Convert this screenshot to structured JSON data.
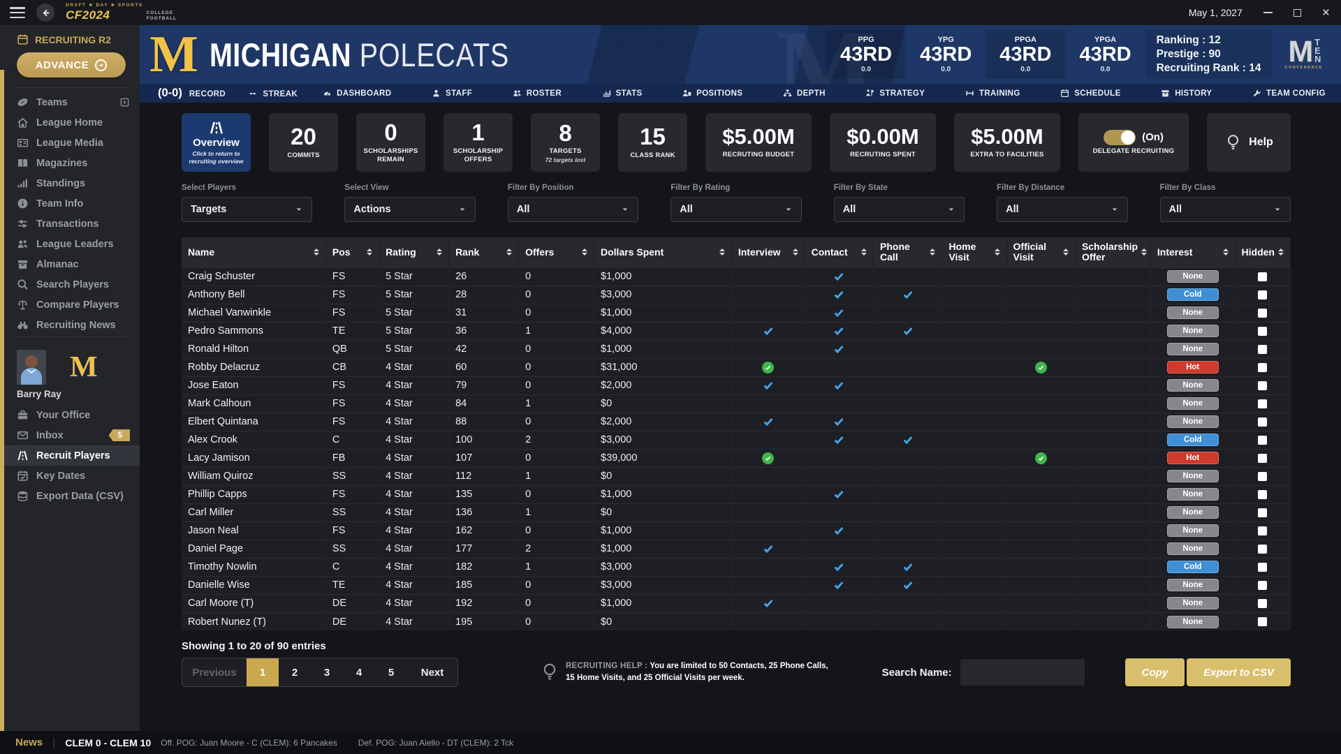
{
  "topbar": {
    "logo": {
      "top": "DRAFT ★ DAY ★ SPORTS",
      "main": "CF2024",
      "stack1": "COLLEGE",
      "stack2": "FOOTBALL"
    },
    "date": "May 1, 2027"
  },
  "sidebar": {
    "phase_label": "RECRUITING R2",
    "advance_label": "ADVANCE",
    "items": [
      {
        "label": "Teams",
        "icon": "football-icon",
        "trailing_icon": "popout-icon"
      },
      {
        "label": "League Home",
        "icon": "home-icon"
      },
      {
        "label": "League Media",
        "icon": "media-icon"
      },
      {
        "label": "Magazines",
        "icon": "book-icon"
      },
      {
        "label": "Standings",
        "icon": "bar-chart-icon"
      },
      {
        "label": "Team Info",
        "icon": "info-icon"
      },
      {
        "label": "Transactions",
        "icon": "transfer-icon"
      },
      {
        "label": "League Leaders",
        "icon": "people-icon"
      },
      {
        "label": "Almanac",
        "icon": "archive-icon"
      },
      {
        "label": "Search Players",
        "icon": "search-icon"
      },
      {
        "label": "Compare Players",
        "icon": "scales-icon"
      },
      {
        "label": "Recruiting News",
        "icon": "binoculars-icon"
      }
    ],
    "user": {
      "name": "Barry Ray",
      "team_monogram": "M"
    },
    "tools": [
      {
        "label": "Your Office",
        "icon": "briefcase-icon"
      },
      {
        "label": "Inbox",
        "icon": "envelope-icon",
        "badge": "5"
      },
      {
        "label": "Recruit Players",
        "icon": "road-icon",
        "active": true
      },
      {
        "label": "Key Dates",
        "icon": "calendar-check-icon"
      },
      {
        "label": "Export Data (CSV)",
        "icon": "database-icon"
      }
    ]
  },
  "banner": {
    "monogram": "M",
    "name_primary": "MICHIGAN",
    "name_secondary": "POLECATS",
    "record_value": "(0-0)",
    "record_label": "RECORD",
    "streak_value": "--",
    "streak_label": "STREAK",
    "rank_stats": [
      {
        "label": "PPG",
        "rank": "43RD",
        "value": "0.0"
      },
      {
        "label": "YPG",
        "rank": "43RD",
        "value": "0.0"
      },
      {
        "label": "PPGA",
        "rank": "43RD",
        "value": "0.0"
      },
      {
        "label": "YPGA",
        "rank": "43RD",
        "value": "0.0"
      }
    ],
    "meta": [
      "Ranking : 12",
      "Prestige : 90",
      "Recruiting Rank : 14"
    ],
    "conference": {
      "m": "M",
      "ten": "TEN",
      "sub": "CONFERENCE"
    },
    "tabs": [
      {
        "label": "DASHBOARD",
        "icon": "dashboard-icon"
      },
      {
        "label": "STAFF",
        "icon": "person-icon"
      },
      {
        "label": "ROSTER",
        "icon": "people-icon"
      },
      {
        "label": "STATS",
        "icon": "chart-icon"
      },
      {
        "label": "POSITIONS",
        "icon": "positions-icon"
      },
      {
        "label": "DEPTH",
        "icon": "tree-icon"
      },
      {
        "label": "STRATEGY",
        "icon": "strategy-icon"
      },
      {
        "label": "TRAINING",
        "icon": "dumbbell-icon"
      },
      {
        "label": "SCHEDULE",
        "icon": "calendar-icon"
      },
      {
        "label": "HISTORY",
        "icon": "archive-icon"
      },
      {
        "label": "TEAM CONFIG",
        "icon": "wrench-icon"
      }
    ]
  },
  "cards": {
    "overview": {
      "label": "Overview",
      "sub": "Click to return to recruiting overview",
      "icon": "road-icon"
    },
    "stats": [
      {
        "value": "20",
        "label": "COMMITS"
      },
      {
        "value": "0",
        "label": "SCHOLARSHIPS REMAIN"
      },
      {
        "value": "1",
        "label": "SCHOLARSHIP OFFERS"
      },
      {
        "value": "8",
        "label": "TARGETS",
        "sub": "72 targets lost"
      },
      {
        "value": "15",
        "label": "CLASS RANK"
      },
      {
        "value": "$5.00M",
        "label": "RECRUTING BUDGET",
        "wide": true
      },
      {
        "value": "$0.00M",
        "label": "RECRUTING SPENT",
        "wide": true
      },
      {
        "value": "$5.00M",
        "label": "EXTRA TO FACILITIES",
        "wide": true
      }
    ],
    "delegate": {
      "label": "DELEGATE RECRUITING",
      "state": "(On)"
    },
    "help": {
      "label": "Help",
      "icon": "lightbulb-icon"
    }
  },
  "filters": [
    {
      "label": "Select Players",
      "value": "Targets"
    },
    {
      "label": "Select View",
      "value": "Actions"
    },
    {
      "label": "Filter By Position",
      "value": "All"
    },
    {
      "label": "Filter By Rating",
      "value": "All"
    },
    {
      "label": "Filter By State",
      "value": "All"
    },
    {
      "label": "Filter By Distance",
      "value": "All"
    },
    {
      "label": "Filter By Class",
      "value": "All"
    }
  ],
  "table": {
    "columns": [
      "Name",
      "Pos",
      "Rating",
      "Rank",
      "Offers",
      "Dollars Spent",
      "Interview",
      "Contact",
      "Phone Call",
      "Home Visit",
      "Official Visit",
      "Scholarship Offer",
      "Interest",
      "Hidden"
    ],
    "rows": [
      {
        "name": "Craig Schuster",
        "pos": "FS",
        "rating": "5 Star",
        "rank": "26",
        "offers": "0",
        "dollars": "$1,000",
        "interview": "",
        "contact": "check",
        "phone_call": "",
        "home_visit": "",
        "official_visit": "",
        "scholarship_offer": "",
        "interest": "None",
        "hidden": false
      },
      {
        "name": "Anthony Bell",
        "pos": "FS",
        "rating": "5 Star",
        "rank": "28",
        "offers": "0",
        "dollars": "$3,000",
        "interview": "",
        "contact": "check",
        "phone_call": "check",
        "home_visit": "",
        "official_visit": "",
        "scholarship_offer": "",
        "interest": "Cold",
        "hidden": false
      },
      {
        "name": "Michael Vanwinkle",
        "pos": "FS",
        "rating": "5 Star",
        "rank": "31",
        "offers": "0",
        "dollars": "$1,000",
        "interview": "",
        "contact": "check",
        "phone_call": "",
        "home_visit": "",
        "official_visit": "",
        "scholarship_offer": "",
        "interest": "None",
        "hidden": false
      },
      {
        "name": "Pedro Sammons",
        "pos": "TE",
        "rating": "5 Star",
        "rank": "36",
        "offers": "1",
        "dollars": "$4,000",
        "interview": "check",
        "contact": "check",
        "phone_call": "check",
        "home_visit": "",
        "official_visit": "",
        "scholarship_offer": "",
        "interest": "None",
        "hidden": false
      },
      {
        "name": "Ronald Hilton",
        "pos": "QB",
        "rating": "5 Star",
        "rank": "42",
        "offers": "0",
        "dollars": "$1,000",
        "interview": "",
        "contact": "check",
        "phone_call": "",
        "home_visit": "",
        "official_visit": "",
        "scholarship_offer": "",
        "interest": "None",
        "hidden": false
      },
      {
        "name": "Robby Delacruz",
        "pos": "CB",
        "rating": "4 Star",
        "rank": "60",
        "offers": "0",
        "dollars": "$31,000",
        "interview": "check-green",
        "contact": "",
        "phone_call": "",
        "home_visit": "",
        "official_visit": "check-green",
        "scholarship_offer": "",
        "interest": "Hot",
        "hidden": false
      },
      {
        "name": "Jose Eaton",
        "pos": "FS",
        "rating": "4 Star",
        "rank": "79",
        "offers": "0",
        "dollars": "$2,000",
        "interview": "check",
        "contact": "check",
        "phone_call": "",
        "home_visit": "",
        "official_visit": "",
        "scholarship_offer": "",
        "interest": "None",
        "hidden": false
      },
      {
        "name": "Mark Calhoun",
        "pos": "FS",
        "rating": "4 Star",
        "rank": "84",
        "offers": "1",
        "dollars": "$0",
        "interview": "",
        "contact": "",
        "phone_call": "",
        "home_visit": "",
        "official_visit": "",
        "scholarship_offer": "",
        "interest": "None",
        "hidden": false
      },
      {
        "name": "Elbert Quintana",
        "pos": "FS",
        "rating": "4 Star",
        "rank": "88",
        "offers": "0",
        "dollars": "$2,000",
        "interview": "check",
        "contact": "check",
        "phone_call": "",
        "home_visit": "",
        "official_visit": "",
        "scholarship_offer": "",
        "interest": "None",
        "hidden": false
      },
      {
        "name": "Alex Crook",
        "pos": "C",
        "rating": "4 Star",
        "rank": "100",
        "offers": "2",
        "dollars": "$3,000",
        "interview": "",
        "contact": "check",
        "phone_call": "check",
        "home_visit": "",
        "official_visit": "",
        "scholarship_offer": "",
        "interest": "Cold",
        "hidden": false
      },
      {
        "name": "Lacy Jamison",
        "pos": "FB",
        "rating": "4 Star",
        "rank": "107",
        "offers": "0",
        "dollars": "$39,000",
        "interview": "check-green",
        "contact": "",
        "phone_call": "",
        "home_visit": "",
        "official_visit": "check-green",
        "scholarship_offer": "",
        "interest": "Hot",
        "hidden": false
      },
      {
        "name": "William Quiroz",
        "pos": "SS",
        "rating": "4 Star",
        "rank": "112",
        "offers": "1",
        "dollars": "$0",
        "interview": "",
        "contact": "",
        "phone_call": "",
        "home_visit": "",
        "official_visit": "",
        "scholarship_offer": "",
        "interest": "None",
        "hidden": false
      },
      {
        "name": "Phillip Capps",
        "pos": "FS",
        "rating": "4 Star",
        "rank": "135",
        "offers": "0",
        "dollars": "$1,000",
        "interview": "",
        "contact": "check",
        "phone_call": "",
        "home_visit": "",
        "official_visit": "",
        "scholarship_offer": "",
        "interest": "None",
        "hidden": false
      },
      {
        "name": "Carl Miller",
        "pos": "SS",
        "rating": "4 Star",
        "rank": "136",
        "offers": "1",
        "dollars": "$0",
        "interview": "",
        "contact": "",
        "phone_call": "",
        "home_visit": "",
        "official_visit": "",
        "scholarship_offer": "",
        "interest": "None",
        "hidden": false
      },
      {
        "name": "Jason Neal",
        "pos": "FS",
        "rating": "4 Star",
        "rank": "162",
        "offers": "0",
        "dollars": "$1,000",
        "interview": "",
        "contact": "check",
        "phone_call": "",
        "home_visit": "",
        "official_visit": "",
        "scholarship_offer": "",
        "interest": "None",
        "hidden": false
      },
      {
        "name": "Daniel Page",
        "pos": "SS",
        "rating": "4 Star",
        "rank": "177",
        "offers": "2",
        "dollars": "$1,000",
        "interview": "check",
        "contact": "",
        "phone_call": "",
        "home_visit": "",
        "official_visit": "",
        "scholarship_offer": "",
        "interest": "None",
        "hidden": false
      },
      {
        "name": "Timothy Nowlin",
        "pos": "C",
        "rating": "4 Star",
        "rank": "182",
        "offers": "1",
        "dollars": "$3,000",
        "interview": "",
        "contact": "check",
        "phone_call": "check",
        "home_visit": "",
        "official_visit": "",
        "scholarship_offer": "",
        "interest": "Cold",
        "hidden": false
      },
      {
        "name": "Danielle Wise",
        "pos": "TE",
        "rating": "4 Star",
        "rank": "185",
        "offers": "0",
        "dollars": "$3,000",
        "interview": "",
        "contact": "check",
        "phone_call": "check",
        "home_visit": "",
        "official_visit": "",
        "scholarship_offer": "",
        "interest": "None",
        "hidden": false
      },
      {
        "name": "Carl Moore (T)",
        "pos": "DE",
        "rating": "4 Star",
        "rank": "192",
        "offers": "0",
        "dollars": "$1,000",
        "interview": "check",
        "contact": "",
        "phone_call": "",
        "home_visit": "",
        "official_visit": "",
        "scholarship_offer": "",
        "interest": "None",
        "hidden": false
      },
      {
        "name": "Robert Nunez (T)",
        "pos": "DE",
        "rating": "4 Star",
        "rank": "195",
        "offers": "0",
        "dollars": "$0",
        "interview": "",
        "contact": "",
        "phone_call": "",
        "home_visit": "",
        "official_visit": "",
        "scholarship_offer": "",
        "interest": "None",
        "hidden": false
      }
    ]
  },
  "footer": {
    "showing": "Showing 1 to 20 of 90 entries",
    "pagination": {
      "previous": "Previous",
      "pages": [
        "1",
        "2",
        "3",
        "4",
        "5"
      ],
      "active": "1",
      "next": "Next"
    },
    "help": {
      "prefix": "RECRUITING HELP :",
      "text": " You are limited to 50 Contacts, 25 Phone Calls, 15 Home Visits, and 25 Official Visits per week."
    },
    "search_label": "Search Name:",
    "copy_label": "Copy",
    "export_label": "Export to CSV"
  },
  "newsbar": {
    "news_label": "News",
    "score": "CLEM 0 - CLEM 10",
    "detail_off": "Off. POG: Juan Moore - C (CLEM): 6 Pancakes",
    "detail_def": "Def. POG: Juan Aiello - DT (CLEM): 2 Tck"
  },
  "colors": {
    "gold": "#c9a959",
    "navy": "#1e3766",
    "check_blue": "#45a1e6",
    "check_green": "#3fb54c",
    "badge_none": "#85878d",
    "badge_cold": "#3f8fd6",
    "badge_hot": "#ce3a2b"
  }
}
